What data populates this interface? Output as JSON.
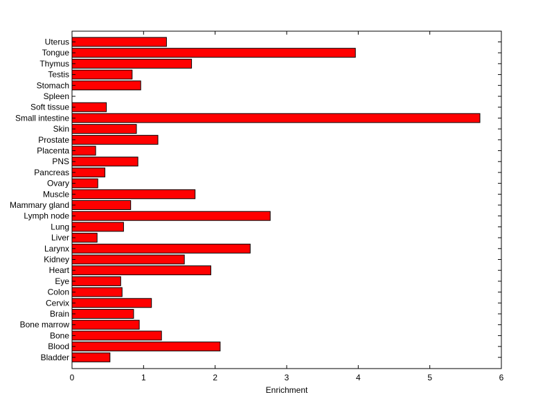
{
  "chart_data": {
    "type": "bar",
    "orientation": "horizontal",
    "categories": [
      "Uterus",
      "Tongue",
      "Thymus",
      "Testis",
      "Stomach",
      "Spleen",
      "Soft tissue",
      "Small intestine",
      "Skin",
      "Prostate",
      "Placenta",
      "PNS",
      "Pancreas",
      "Ovary",
      "Muscle",
      "Mammary gland",
      "Lymph node",
      "Lung",
      "Liver",
      "Larynx",
      "Kidney",
      "Heart",
      "Eye",
      "Colon",
      "Cervix",
      "Brain",
      "Bone marrow",
      "Bone",
      "Blood",
      "Bladder"
    ],
    "values": [
      1.32,
      3.96,
      1.67,
      0.84,
      0.96,
      0.0,
      0.48,
      5.7,
      0.9,
      1.2,
      0.33,
      0.92,
      0.46,
      0.36,
      1.72,
      0.82,
      2.77,
      0.72,
      0.35,
      2.49,
      1.57,
      1.94,
      0.68,
      0.7,
      1.11,
      0.86,
      0.94,
      1.25,
      2.07,
      0.53
    ],
    "title": "",
    "xlabel": "Enrichment",
    "ylabel": "",
    "xlim": [
      0,
      6
    ],
    "xticks": [
      0,
      1,
      2,
      3,
      4,
      5,
      6
    ],
    "bar_color": "#ff0000",
    "edge_color": "#000000",
    "grid": false,
    "legend": "none"
  }
}
